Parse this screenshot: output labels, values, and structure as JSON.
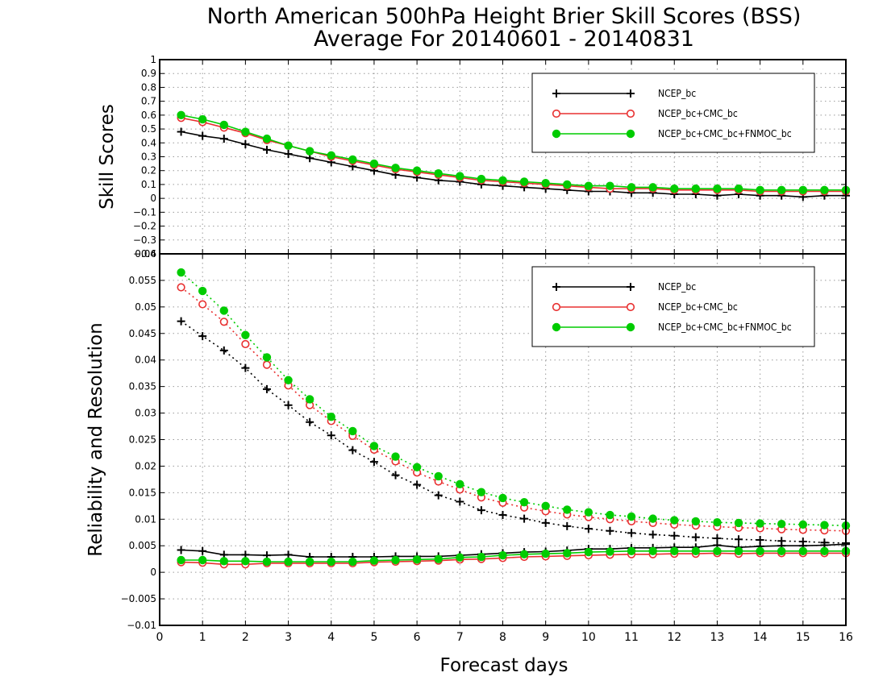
{
  "title_line1": "North American 500hPa Height Brier Skill Scores (BSS)",
  "title_line2": "Average For 20140601 - 20140831",
  "xlabel": "Forecast days",
  "chart_data": [
    {
      "type": "line",
      "ylabel": "Skill Scores",
      "xlim": [
        0,
        16
      ],
      "ylim": [
        -0.4,
        1
      ],
      "xticks": [
        0,
        1,
        2,
        3,
        4,
        5,
        6,
        7,
        8,
        9,
        10,
        11,
        12,
        13,
        14,
        15,
        16
      ],
      "yticks": [
        -0.4,
        -0.3,
        -0.2,
        -0.1,
        0,
        0.1,
        0.2,
        0.3,
        0.4,
        0.5,
        0.6,
        0.7,
        0.8,
        0.9,
        1
      ],
      "grid": true,
      "legend_position": "top-right",
      "x": [
        0.5,
        1,
        1.5,
        2,
        2.5,
        3,
        3.5,
        4,
        4.5,
        5,
        5.5,
        6,
        6.5,
        7,
        7.5,
        8,
        8.5,
        9,
        9.5,
        10,
        10.5,
        11,
        11.5,
        12,
        12.5,
        13,
        13.5,
        14,
        14.5,
        15,
        15.5,
        16
      ],
      "series": [
        {
          "name": "NCEP_bc",
          "color": "#000000",
          "marker": "plus",
          "line": "solid",
          "values": [
            0.48,
            0.45,
            0.43,
            0.39,
            0.35,
            0.32,
            0.29,
            0.26,
            0.23,
            0.2,
            0.17,
            0.15,
            0.13,
            0.12,
            0.1,
            0.09,
            0.08,
            0.07,
            0.06,
            0.05,
            0.05,
            0.04,
            0.04,
            0.03,
            0.03,
            0.02,
            0.03,
            0.02,
            0.02,
            0.01,
            0.02,
            0.02
          ]
        },
        {
          "name": "NCEP_bc+CMC_bc",
          "color": "#e83030",
          "marker": "circle-open",
          "line": "solid",
          "values": [
            0.58,
            0.55,
            0.51,
            0.47,
            0.42,
            0.38,
            0.34,
            0.3,
            0.27,
            0.24,
            0.21,
            0.19,
            0.17,
            0.15,
            0.13,
            0.12,
            0.11,
            0.1,
            0.09,
            0.08,
            0.07,
            0.07,
            0.07,
            0.06,
            0.06,
            0.06,
            0.06,
            0.05,
            0.05,
            0.05,
            0.05,
            0.05
          ]
        },
        {
          "name": "NCEP_bc+CMC_bc+FNMOC_bc",
          "color": "#00cc00",
          "marker": "circle-filled",
          "line": "solid",
          "values": [
            0.6,
            0.57,
            0.53,
            0.48,
            0.43,
            0.38,
            0.34,
            0.31,
            0.28,
            0.25,
            0.22,
            0.2,
            0.18,
            0.16,
            0.14,
            0.13,
            0.12,
            0.11,
            0.1,
            0.09,
            0.09,
            0.08,
            0.08,
            0.07,
            0.07,
            0.07,
            0.07,
            0.06,
            0.06,
            0.06,
            0.06,
            0.06
          ]
        }
      ]
    },
    {
      "type": "line",
      "ylabel": "Reliability and Resolution",
      "xlim": [
        0,
        16
      ],
      "ylim": [
        -0.01,
        0.06
      ],
      "xticks": [
        0,
        1,
        2,
        3,
        4,
        5,
        6,
        7,
        8,
        9,
        10,
        11,
        12,
        13,
        14,
        15,
        16
      ],
      "yticks": [
        -0.01,
        -0.005,
        0,
        0.005,
        0.01,
        0.015,
        0.02,
        0.025,
        0.03,
        0.035,
        0.04,
        0.045,
        0.05,
        0.055,
        0.06
      ],
      "grid": true,
      "legend_position": "top-right",
      "x": [
        0.5,
        1,
        1.5,
        2,
        2.5,
        3,
        3.5,
        4,
        4.5,
        5,
        5.5,
        6,
        6.5,
        7,
        7.5,
        8,
        8.5,
        9,
        9.5,
        10,
        10.5,
        11,
        11.5,
        12,
        12.5,
        13,
        13.5,
        14,
        14.5,
        15,
        15.5,
        16
      ],
      "series": [
        {
          "name": "NCEP_bc",
          "color": "#000000",
          "marker": "plus",
          "line": "dotted",
          "values": [
            0.0473,
            0.0445,
            0.0418,
            0.0385,
            0.0345,
            0.0315,
            0.0283,
            0.0258,
            0.023,
            0.0208,
            0.0183,
            0.0165,
            0.0145,
            0.0133,
            0.0117,
            0.0108,
            0.0101,
            0.0093,
            0.0087,
            0.0082,
            0.0078,
            0.0074,
            0.0071,
            0.0069,
            0.0066,
            0.0064,
            0.0062,
            0.0061,
            0.0059,
            0.0058,
            0.0056,
            0.0055
          ]
        },
        {
          "name": "NCEP_bc+CMC_bc",
          "color": "#e83030",
          "marker": "circle-open",
          "line": "dotted",
          "values": [
            0.0537,
            0.0505,
            0.0472,
            0.043,
            0.0391,
            0.0352,
            0.0315,
            0.0285,
            0.0257,
            0.0231,
            0.0209,
            0.0188,
            0.0171,
            0.0156,
            0.0141,
            0.0131,
            0.0122,
            0.0115,
            0.0109,
            0.0104,
            0.01,
            0.0096,
            0.0093,
            0.009,
            0.0088,
            0.0086,
            0.0084,
            0.0083,
            0.0081,
            0.008,
            0.0079,
            0.0078
          ]
        },
        {
          "name": "NCEP_bc+CMC_bc+FNMOC_bc",
          "color": "#00cc00",
          "marker": "circle-filled",
          "line": "dotted",
          "values": [
            0.0565,
            0.053,
            0.0493,
            0.0447,
            0.0405,
            0.0362,
            0.0326,
            0.0293,
            0.0266,
            0.0238,
            0.0218,
            0.0198,
            0.0181,
            0.0166,
            0.0151,
            0.014,
            0.0132,
            0.0125,
            0.0118,
            0.0113,
            0.0108,
            0.0105,
            0.0101,
            0.0098,
            0.0096,
            0.0094,
            0.0093,
            0.0092,
            0.0091,
            0.009,
            0.0089,
            0.0088
          ]
        },
        {
          "name": "NCEP_bc",
          "color": "#000000",
          "marker": "plus",
          "line": "solid",
          "values": [
            0.0042,
            0.004,
            0.0033,
            0.0033,
            0.0032,
            0.0033,
            0.0029,
            0.0029,
            0.0029,
            0.0029,
            0.003,
            0.003,
            0.003,
            0.0032,
            0.0034,
            0.0036,
            0.0038,
            0.0039,
            0.0041,
            0.0044,
            0.0044,
            0.0046,
            0.0046,
            0.0047,
            0.0047,
            0.0051,
            0.0047,
            0.0049,
            0.005,
            0.005,
            0.0051,
            0.0053
          ]
        },
        {
          "name": "NCEP_bc+CMC_bc",
          "color": "#e83030",
          "marker": "circle-open",
          "line": "solid",
          "values": [
            0.0019,
            0.0018,
            0.0015,
            0.0015,
            0.0017,
            0.0017,
            0.0017,
            0.0017,
            0.0017,
            0.0019,
            0.002,
            0.0021,
            0.0022,
            0.0024,
            0.0025,
            0.0027,
            0.0029,
            0.003,
            0.0031,
            0.0032,
            0.0033,
            0.0034,
            0.0034,
            0.0035,
            0.0035,
            0.0036,
            0.0035,
            0.0036,
            0.0036,
            0.0036,
            0.0036,
            0.0036
          ]
        },
        {
          "name": "NCEP_bc+CMC_bc+FNMOC_bc",
          "color": "#00cc00",
          "marker": "circle-filled",
          "line": "solid",
          "values": [
            0.0023,
            0.0023,
            0.0021,
            0.0021,
            0.002,
            0.002,
            0.002,
            0.002,
            0.002,
            0.0022,
            0.0023,
            0.0024,
            0.0025,
            0.0028,
            0.0029,
            0.0032,
            0.0034,
            0.0035,
            0.0036,
            0.0038,
            0.0039,
            0.004,
            0.004,
            0.004,
            0.004,
            0.004,
            0.004,
            0.004,
            0.004,
            0.004,
            0.004,
            0.004
          ]
        }
      ]
    }
  ],
  "legend": [
    {
      "label": "NCEP_bc",
      "color": "#000000",
      "marker": "plus"
    },
    {
      "label": "NCEP_bc+CMC_bc",
      "color": "#e83030",
      "marker": "circle-open"
    },
    {
      "label": "NCEP_bc+CMC_bc+FNMOC_bc",
      "color": "#00cc00",
      "marker": "circle-filled"
    }
  ]
}
